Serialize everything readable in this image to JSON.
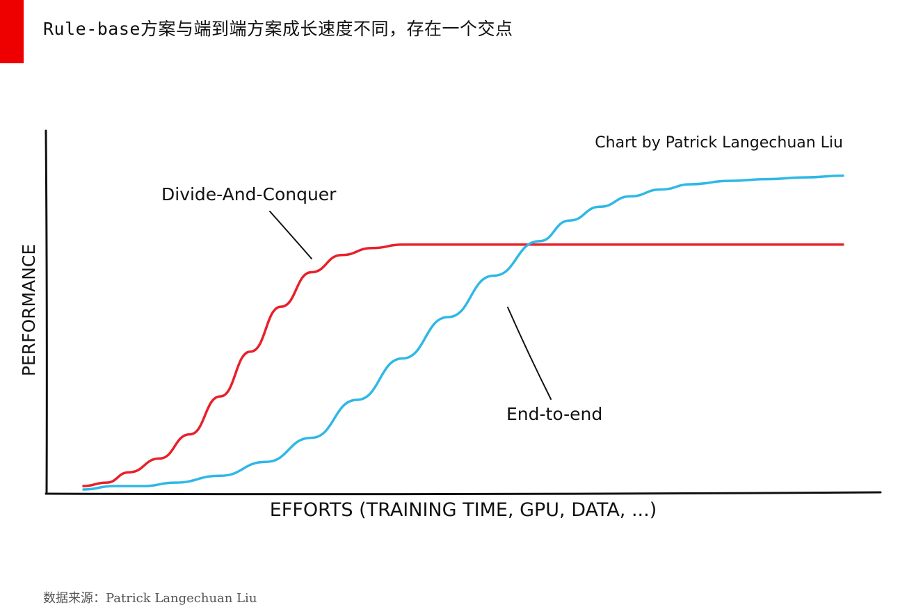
{
  "header": {
    "title": "Rule-base方案与端到端方案成长速度不同，存在一个交点",
    "accent_color": "#ee0000"
  },
  "footer": {
    "source": "数据来源：Patrick Langechuan Liu"
  },
  "chart_data": {
    "type": "line",
    "title": "",
    "credit": "Chart by Patrick Langechuan Liu",
    "xlabel": "EFFORTS (TRAINING TIME, GPU, DATA, ...)",
    "ylabel": "PERFORMANCE",
    "xlim": [
      0,
      100
    ],
    "ylim": [
      0,
      100
    ],
    "grid": false,
    "legend": "none",
    "series": [
      {
        "name": "Divide-And-Conquer",
        "color": "#e8202a",
        "x": [
          0,
          3,
          6,
          10,
          14,
          18,
          22,
          26,
          30,
          34,
          38,
          42,
          48,
          55,
          62,
          70,
          80,
          90,
          100
        ],
        "y": [
          1,
          2,
          5,
          9,
          16,
          27,
          40,
          53,
          63,
          68,
          70,
          71,
          71,
          71,
          71,
          71,
          71,
          71,
          71
        ]
      },
      {
        "name": "End-to-end",
        "color": "#2fb8e6",
        "x": [
          0,
          4,
          8,
          12,
          18,
          24,
          30,
          36,
          42,
          48,
          54,
          60,
          64,
          68,
          72,
          76,
          80,
          85,
          90,
          95,
          100
        ],
        "y": [
          0,
          1,
          1,
          2,
          4,
          8,
          15,
          26,
          38,
          50,
          62,
          72,
          78,
          82,
          85,
          87,
          88.5,
          89.5,
          90,
          90.5,
          91
        ]
      }
    ],
    "annotations": [
      {
        "text": "Divide-And-Conquer",
        "series": 0
      },
      {
        "text": "End-to-end",
        "series": 1
      }
    ]
  }
}
